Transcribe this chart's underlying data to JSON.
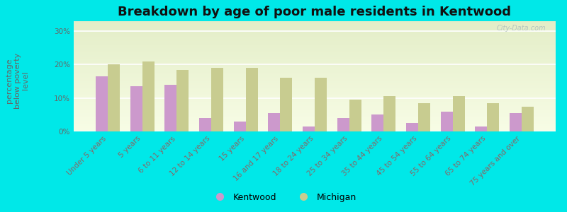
{
  "title": "Breakdown by age of poor male residents in Kentwood",
  "ylabel": "percentage\nbelow poverty\nlevel",
  "categories": [
    "Under 5 years",
    "5 years",
    "6 to 11 years",
    "12 to 14 years",
    "15 years",
    "16 and 17 years",
    "18 to 24 years",
    "25 to 34 years",
    "35 to 44 years",
    "45 to 54 years",
    "55 to 64 years",
    "65 to 74 years",
    "75 years and over"
  ],
  "kentwood": [
    16.5,
    13.5,
    14.0,
    4.0,
    3.0,
    5.5,
    1.5,
    4.0,
    5.0,
    2.5,
    6.0,
    1.5,
    5.5
  ],
  "michigan": [
    20.0,
    21.0,
    18.5,
    19.0,
    19.0,
    16.0,
    16.0,
    9.5,
    10.5,
    8.5,
    10.5,
    8.5,
    7.5
  ],
  "kentwood_color": "#cc99cc",
  "michigan_color": "#c8cc90",
  "background_outer": "#00e8e8",
  "yticks": [
    0,
    10,
    20,
    30
  ],
  "ytick_labels": [
    "0%",
    "10%",
    "20%",
    "30%"
  ],
  "ylim": [
    0,
    33
  ],
  "title_fontsize": 13,
  "axis_label_fontsize": 8,
  "tick_label_fontsize": 7.5,
  "legend_fontsize": 9,
  "tick_color": "#886666",
  "ylabel_color": "#666666",
  "ytick_color": "#666666",
  "watermark": "City-Data.com"
}
